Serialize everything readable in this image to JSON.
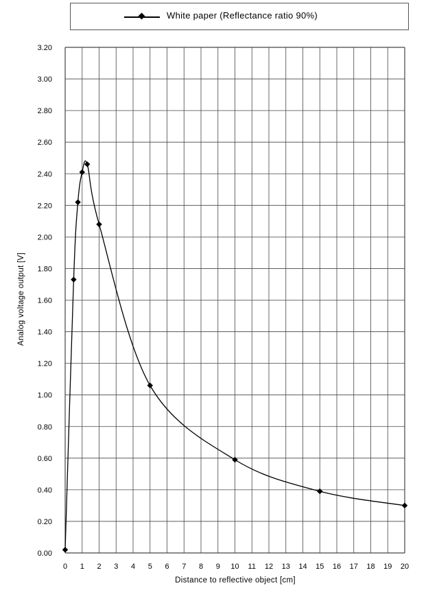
{
  "chart_data": {
    "type": "line",
    "title": "",
    "xlabel": "Distance to reflective object [cm]",
    "ylabel": "Analog voltage output [V]",
    "xlim": [
      0,
      20
    ],
    "ylim": [
      0,
      3.2
    ],
    "grid": true,
    "legend_position": "top",
    "x_ticks": [
      "0",
      "1",
      "2",
      "3",
      "4",
      "5",
      "6",
      "7",
      "8",
      "9",
      "10",
      "11",
      "12",
      "13",
      "14",
      "15",
      "16",
      "17",
      "18",
      "19",
      "20"
    ],
    "y_ticks": [
      "0.00",
      "0.20",
      "0.40",
      "0.60",
      "0.80",
      "1.00",
      "1.20",
      "1.40",
      "1.60",
      "1.80",
      "2.00",
      "2.20",
      "2.40",
      "2.60",
      "2.80",
      "3.00",
      "3.20"
    ],
    "series": [
      {
        "name": "White paper (Reflectance ratio 90%)",
        "color": "#000000",
        "marker": "diamond",
        "x": [
          0,
          0.5,
          0.75,
          1,
          1.3,
          2,
          5,
          10,
          15,
          20
        ],
        "y": [
          0.02,
          1.73,
          2.22,
          2.41,
          2.46,
          2.08,
          1.06,
          0.59,
          0.39,
          0.3
        ]
      }
    ]
  }
}
